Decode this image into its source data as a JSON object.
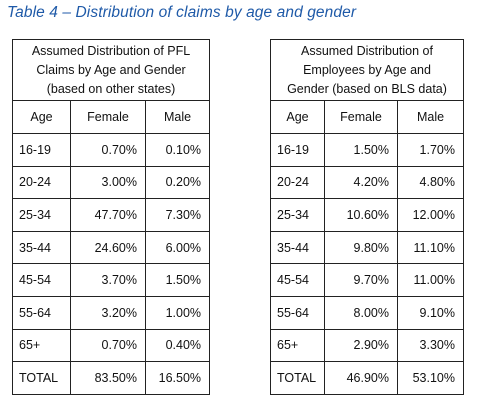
{
  "caption": "Table 4 – Distribution of claims by age and gender",
  "left_table": {
    "title_lines": [
      "Assumed Distribution of PFL",
      "Claims by Age and Gender",
      "(based on other states)"
    ],
    "columns": [
      "Age",
      "Female",
      "Male"
    ],
    "rows": [
      [
        "16-19",
        "0.70%",
        "0.10%"
      ],
      [
        "20-24",
        "3.00%",
        "0.20%"
      ],
      [
        "25-34",
        "47.70%",
        "7.30%"
      ],
      [
        "35-44",
        "24.60%",
        "6.00%"
      ],
      [
        "45-54",
        "3.70%",
        "1.50%"
      ],
      [
        "55-64",
        "3.20%",
        "1.00%"
      ],
      [
        "65+",
        "0.70%",
        "0.40%"
      ],
      [
        "TOTAL",
        "83.50%",
        "16.50%"
      ]
    ]
  },
  "right_table": {
    "title_lines": [
      "Assumed Distribution of",
      "Employees by Age and",
      "Gender (based on BLS data)"
    ],
    "columns": [
      "Age",
      "Female",
      "Male"
    ],
    "rows": [
      [
        "16-19",
        "1.50%",
        "1.70%"
      ],
      [
        "20-24",
        "4.20%",
        "4.80%"
      ],
      [
        "25-34",
        "10.60%",
        "12.00%"
      ],
      [
        "35-44",
        "9.80%",
        "11.10%"
      ],
      [
        "45-54",
        "9.70%",
        "11.00%"
      ],
      [
        "55-64",
        "8.00%",
        "9.10%"
      ],
      [
        "65+",
        "2.90%",
        "3.30%"
      ],
      [
        "TOTAL",
        "46.90%",
        "53.10%"
      ]
    ]
  }
}
